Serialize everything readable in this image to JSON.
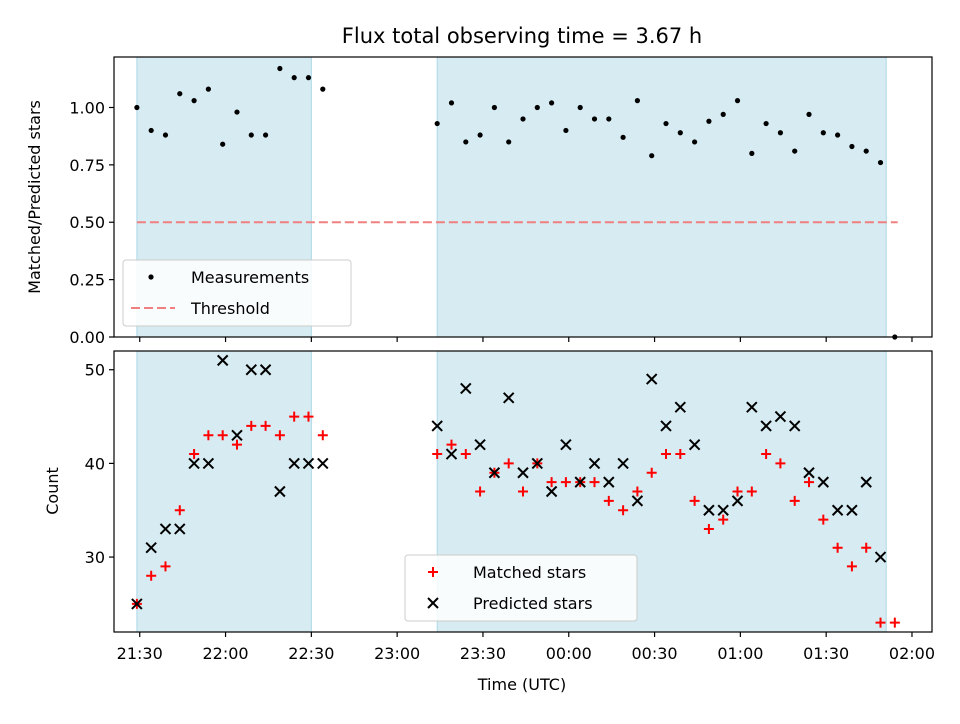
{
  "title": "Flux total observing time = 3.67 h",
  "colors": {
    "band": "#add8e6",
    "measurement": "#000000",
    "threshold": "#f08080",
    "matched": "#ff0000",
    "predicted": "#000000"
  },
  "chart_data": [
    {
      "type": "scatter",
      "ylabel": "Matched/Predicted stars",
      "ylim": [
        0.0,
        1.22
      ],
      "yticks": [
        0.0,
        0.25,
        0.5,
        0.75,
        1.0
      ],
      "ytick_labels": [
        "0.00",
        "0.25",
        "0.50",
        "0.75",
        "1.00"
      ],
      "xlim": [
        "21:21",
        "02:07"
      ],
      "shaded_intervals": [
        [
          "21:29",
          "22:30"
        ],
        [
          "23:14",
          "01:51"
        ]
      ],
      "threshold_line": {
        "y": 0.5,
        "x_range": [
          "21:29",
          "01:55"
        ]
      },
      "legend": {
        "placement": "lower left",
        "entries": [
          "Measurements",
          "Threshold"
        ]
      },
      "series": [
        {
          "name": "Measurements",
          "marker": "dot",
          "points": [
            [
              "21:29",
              1.0
            ],
            [
              "21:34",
              0.9
            ],
            [
              "21:39",
              0.88
            ],
            [
              "21:44",
              1.06
            ],
            [
              "21:49",
              1.03
            ],
            [
              "21:54",
              1.08
            ],
            [
              "21:59",
              0.84
            ],
            [
              "22:04",
              0.98
            ],
            [
              "22:09",
              0.88
            ],
            [
              "22:14",
              0.88
            ],
            [
              "22:19",
              1.17
            ],
            [
              "22:24",
              1.13
            ],
            [
              "22:29",
              1.13
            ],
            [
              "22:34",
              1.08
            ],
            [
              "23:14",
              0.93
            ],
            [
              "23:19",
              1.02
            ],
            [
              "23:24",
              0.85
            ],
            [
              "23:29",
              0.88
            ],
            [
              "23:34",
              1.0
            ],
            [
              "23:39",
              0.85
            ],
            [
              "23:44",
              0.95
            ],
            [
              "23:49",
              1.0
            ],
            [
              "23:54",
              1.02
            ],
            [
              "23:59",
              0.9
            ],
            [
              "00:04",
              1.0
            ],
            [
              "00:09",
              0.95
            ],
            [
              "00:14",
              0.95
            ],
            [
              "00:19",
              0.87
            ],
            [
              "00:24",
              1.03
            ],
            [
              "00:29",
              0.79
            ],
            [
              "00:34",
              0.93
            ],
            [
              "00:39",
              0.89
            ],
            [
              "00:44",
              0.85
            ],
            [
              "00:49",
              0.94
            ],
            [
              "00:54",
              0.97
            ],
            [
              "00:59",
              1.03
            ],
            [
              "01:04",
              0.8
            ],
            [
              "01:09",
              0.93
            ],
            [
              "01:14",
              0.89
            ],
            [
              "01:19",
              0.81
            ],
            [
              "01:24",
              0.97
            ],
            [
              "01:29",
              0.89
            ],
            [
              "01:34",
              0.88
            ],
            [
              "01:39",
              0.83
            ],
            [
              "01:44",
              0.81
            ],
            [
              "01:49",
              0.76
            ],
            [
              "01:54",
              0.0
            ]
          ]
        }
      ]
    },
    {
      "type": "scatter",
      "xlabel": "Time (UTC)",
      "ylabel": "Count",
      "ylim": [
        22,
        52
      ],
      "yticks": [
        30,
        40,
        50
      ],
      "ytick_labels": [
        "30",
        "40",
        "50"
      ],
      "xlim": [
        "21:21",
        "02:07"
      ],
      "xticks": [
        "21:30",
        "22:00",
        "22:30",
        "23:00",
        "23:30",
        "00:00",
        "00:30",
        "01:00",
        "01:30",
        "02:00"
      ],
      "xtick_labels": [
        "21:30",
        "22:00",
        "22:30",
        "23:00",
        "23:30",
        "00:00",
        "00:30",
        "01:00",
        "01:30",
        "02:00"
      ],
      "shaded_intervals": [
        [
          "21:29",
          "22:30"
        ],
        [
          "23:14",
          "01:51"
        ]
      ],
      "legend": {
        "placement": "lower center",
        "entries": [
          "Matched stars",
          "Predicted stars"
        ]
      },
      "series": [
        {
          "name": "Matched stars",
          "marker": "plus",
          "points": [
            [
              "21:29",
              25
            ],
            [
              "21:34",
              28
            ],
            [
              "21:39",
              29
            ],
            [
              "21:44",
              35
            ],
            [
              "21:49",
              41
            ],
            [
              "21:54",
              43
            ],
            [
              "21:59",
              43
            ],
            [
              "22:04",
              42
            ],
            [
              "22:09",
              44
            ],
            [
              "22:14",
              44
            ],
            [
              "22:19",
              43
            ],
            [
              "22:24",
              45
            ],
            [
              "22:29",
              45
            ],
            [
              "22:34",
              43
            ],
            [
              "23:14",
              41
            ],
            [
              "23:19",
              42
            ],
            [
              "23:24",
              41
            ],
            [
              "23:29",
              37
            ],
            [
              "23:34",
              39
            ],
            [
              "23:39",
              40
            ],
            [
              "23:44",
              37
            ],
            [
              "23:49",
              40
            ],
            [
              "23:54",
              38
            ],
            [
              "23:59",
              38
            ],
            [
              "00:04",
              38
            ],
            [
              "00:09",
              38
            ],
            [
              "00:14",
              36
            ],
            [
              "00:19",
              35
            ],
            [
              "00:24",
              37
            ],
            [
              "00:29",
              39
            ],
            [
              "00:34",
              41
            ],
            [
              "00:39",
              41
            ],
            [
              "00:44",
              36
            ],
            [
              "00:49",
              33
            ],
            [
              "00:54",
              34
            ],
            [
              "00:59",
              37
            ],
            [
              "01:04",
              37
            ],
            [
              "01:09",
              41
            ],
            [
              "01:14",
              40
            ],
            [
              "01:19",
              36
            ],
            [
              "01:24",
              38
            ],
            [
              "01:29",
              34
            ],
            [
              "01:34",
              31
            ],
            [
              "01:39",
              29
            ],
            [
              "01:44",
              31
            ],
            [
              "01:49",
              23
            ],
            [
              "01:54",
              23
            ]
          ]
        },
        {
          "name": "Predicted stars",
          "marker": "x",
          "points": [
            [
              "21:29",
              25
            ],
            [
              "21:34",
              31
            ],
            [
              "21:39",
              33
            ],
            [
              "21:44",
              33
            ],
            [
              "21:49",
              40
            ],
            [
              "21:54",
              40
            ],
            [
              "21:59",
              51
            ],
            [
              "22:04",
              43
            ],
            [
              "22:09",
              50
            ],
            [
              "22:14",
              50
            ],
            [
              "22:19",
              37
            ],
            [
              "22:24",
              40
            ],
            [
              "22:29",
              40
            ],
            [
              "22:34",
              40
            ],
            [
              "23:14",
              44
            ],
            [
              "23:19",
              41
            ],
            [
              "23:24",
              48
            ],
            [
              "23:29",
              42
            ],
            [
              "23:34",
              39
            ],
            [
              "23:39",
              47
            ],
            [
              "23:44",
              39
            ],
            [
              "23:49",
              40
            ],
            [
              "23:54",
              37
            ],
            [
              "23:59",
              42
            ],
            [
              "00:04",
              38
            ],
            [
              "00:09",
              40
            ],
            [
              "00:14",
              38
            ],
            [
              "00:19",
              40
            ],
            [
              "00:24",
              36
            ],
            [
              "00:29",
              49
            ],
            [
              "00:34",
              44
            ],
            [
              "00:39",
              46
            ],
            [
              "00:44",
              42
            ],
            [
              "00:49",
              35
            ],
            [
              "00:54",
              35
            ],
            [
              "00:59",
              36
            ],
            [
              "01:04",
              46
            ],
            [
              "01:09",
              44
            ],
            [
              "01:14",
              45
            ],
            [
              "01:19",
              44
            ],
            [
              "01:24",
              39
            ],
            [
              "01:29",
              38
            ],
            [
              "01:34",
              35
            ],
            [
              "01:39",
              35
            ],
            [
              "01:44",
              38
            ],
            [
              "01:49",
              30
            ]
          ]
        }
      ]
    }
  ]
}
